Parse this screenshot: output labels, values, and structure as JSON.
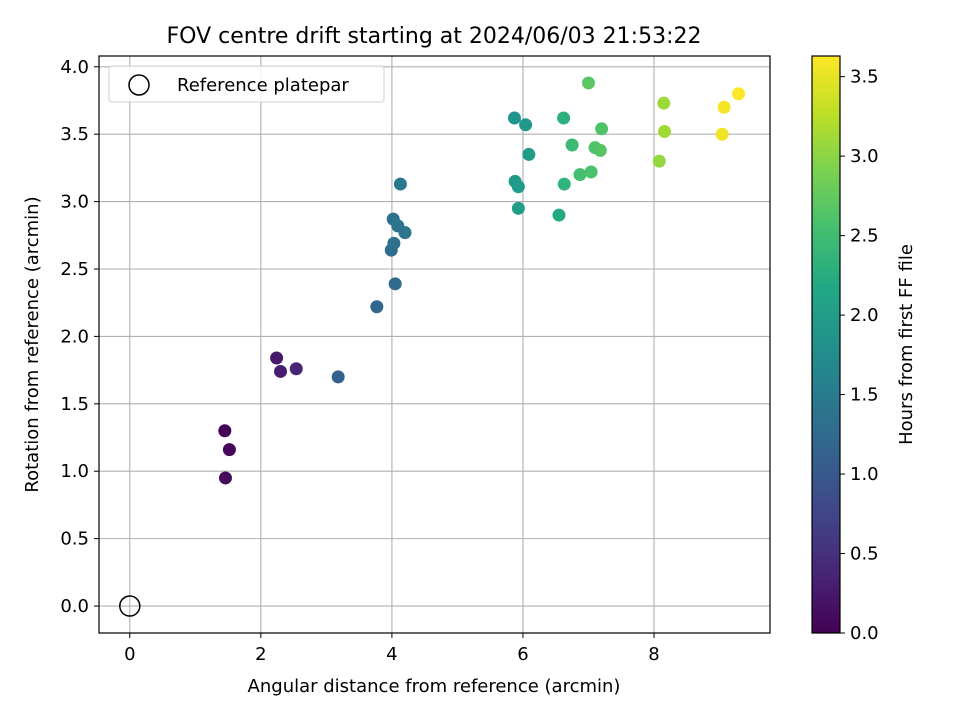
{
  "chart_data": {
    "type": "scatter",
    "title": "FOV centre drift starting at 2024/06/03 21:53:22",
    "xlabel": "Angular distance from reference (arcmin)",
    "ylabel": "Rotation from reference (arcmin)",
    "xlim": [
      -0.47,
      9.77
    ],
    "ylim": [
      -0.2,
      4.08
    ],
    "xticks": [
      0,
      2,
      4,
      6,
      8
    ],
    "xtick_labels": [
      "0",
      "2",
      "4",
      "6",
      "8"
    ],
    "yticks": [
      0.0,
      0.5,
      1.0,
      1.5,
      2.0,
      2.5,
      3.0,
      3.5,
      4.0
    ],
    "ytick_labels": [
      "0.0",
      "0.5",
      "1.0",
      "1.5",
      "2.0",
      "2.5",
      "3.0",
      "3.5",
      "4.0"
    ],
    "grid": true,
    "legend": {
      "placement": "top-left",
      "entries": [
        {
          "label": "Reference platepar",
          "marker": "hollow-circle",
          "color": "#000000"
        }
      ]
    },
    "reference_point": {
      "x": 0,
      "y": 0
    },
    "colorbar": {
      "label": "Hours from first FF file",
      "colormap": "viridis",
      "range": [
        0.0,
        3.63
      ],
      "ticks": [
        0.0,
        0.5,
        1.0,
        1.5,
        2.0,
        2.5,
        3.0,
        3.5
      ],
      "tick_labels": [
        "0.0",
        "0.5",
        "1.0",
        "1.5",
        "2.0",
        "2.5",
        "3.0",
        "3.5"
      ]
    },
    "points": [
      {
        "x": 1.45,
        "y": 1.3,
        "hours": 0.02
      },
      {
        "x": 1.52,
        "y": 1.16,
        "hours": 0.05
      },
      {
        "x": 1.46,
        "y": 0.95,
        "hours": 0.1
      },
      {
        "x": 2.24,
        "y": 1.84,
        "hours": 0.25
      },
      {
        "x": 2.3,
        "y": 1.74,
        "hours": 0.3
      },
      {
        "x": 2.54,
        "y": 1.76,
        "hours": 0.38
      },
      {
        "x": 3.18,
        "y": 1.7,
        "hours": 1.15
      },
      {
        "x": 3.77,
        "y": 2.22,
        "hours": 1.2
      },
      {
        "x": 4.05,
        "y": 2.39,
        "hours": 1.25
      },
      {
        "x": 3.99,
        "y": 2.64,
        "hours": 1.3
      },
      {
        "x": 4.03,
        "y": 2.69,
        "hours": 1.33
      },
      {
        "x": 4.02,
        "y": 2.87,
        "hours": 1.37
      },
      {
        "x": 4.09,
        "y": 2.82,
        "hours": 1.4
      },
      {
        "x": 4.2,
        "y": 2.77,
        "hours": 1.42
      },
      {
        "x": 4.13,
        "y": 3.13,
        "hours": 1.45
      },
      {
        "x": 5.87,
        "y": 3.62,
        "hours": 1.88
      },
      {
        "x": 6.04,
        "y": 3.57,
        "hours": 1.92
      },
      {
        "x": 6.09,
        "y": 3.35,
        "hours": 1.98
      },
      {
        "x": 5.88,
        "y": 3.15,
        "hours": 1.95
      },
      {
        "x": 5.93,
        "y": 3.11,
        "hours": 1.97
      },
      {
        "x": 5.93,
        "y": 2.95,
        "hours": 2.0
      },
      {
        "x": 6.55,
        "y": 2.9,
        "hours": 2.2
      },
      {
        "x": 6.62,
        "y": 3.62,
        "hours": 2.3
      },
      {
        "x": 6.63,
        "y": 3.13,
        "hours": 2.35
      },
      {
        "x": 6.75,
        "y": 3.42,
        "hours": 2.45
      },
      {
        "x": 6.87,
        "y": 3.2,
        "hours": 2.55
      },
      {
        "x": 7.04,
        "y": 3.22,
        "hours": 2.58
      },
      {
        "x": 7.1,
        "y": 3.4,
        "hours": 2.62
      },
      {
        "x": 7.18,
        "y": 3.38,
        "hours": 2.65
      },
      {
        "x": 7.2,
        "y": 3.54,
        "hours": 2.6
      },
      {
        "x": 7.0,
        "y": 3.88,
        "hours": 2.7
      },
      {
        "x": 8.08,
        "y": 3.3,
        "hours": 3.05
      },
      {
        "x": 8.15,
        "y": 3.73,
        "hours": 3.1
      },
      {
        "x": 8.16,
        "y": 3.52,
        "hours": 3.12
      },
      {
        "x": 9.04,
        "y": 3.5,
        "hours": 3.55
      },
      {
        "x": 9.07,
        "y": 3.7,
        "hours": 3.58
      },
      {
        "x": 9.29,
        "y": 3.8,
        "hours": 3.62
      }
    ]
  }
}
